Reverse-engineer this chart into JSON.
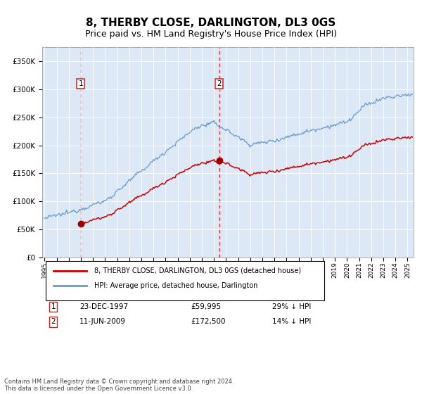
{
  "title": "8, THERBY CLOSE, DARLINGTON, DL3 0GS",
  "subtitle": "Price paid vs. HM Land Registry's House Price Index (HPI)",
  "title_fontsize": 11,
  "subtitle_fontsize": 9,
  "plot_bg_color": "#dce8f5",
  "ylabel_ticks": [
    "£0",
    "£50K",
    "£100K",
    "£150K",
    "£200K",
    "£250K",
    "£300K",
    "£350K"
  ],
  "ytick_values": [
    0,
    50000,
    100000,
    150000,
    200000,
    250000,
    300000,
    350000
  ],
  "ylim": [
    0,
    375000
  ],
  "xlim_start": 1994.8,
  "xlim_end": 2025.5,
  "purchase1_x": 1997.98,
  "purchase1_y": 59995,
  "purchase1_label": "23-DEC-1997",
  "purchase1_price": "£59,995",
  "purchase1_note": "29% ↓ HPI",
  "purchase2_x": 2009.44,
  "purchase2_y": 172500,
  "purchase2_label": "11-JUN-2009",
  "purchase2_price": "£172,500",
  "purchase2_note": "14% ↓ HPI",
  "legend1": "8, THERBY CLOSE, DARLINGTON, DL3 0GS (detached house)",
  "legend2": "HPI: Average price, detached house, Darlington",
  "footer": "Contains HM Land Registry data © Crown copyright and database right 2024.\nThis data is licensed under the Open Government Licence v3.0.",
  "hpi_color": "#6699cc",
  "price_color": "#cc0000",
  "vline_color": "#cc2222",
  "marker_color": "#990000",
  "box_edge_color": "#cc2222"
}
